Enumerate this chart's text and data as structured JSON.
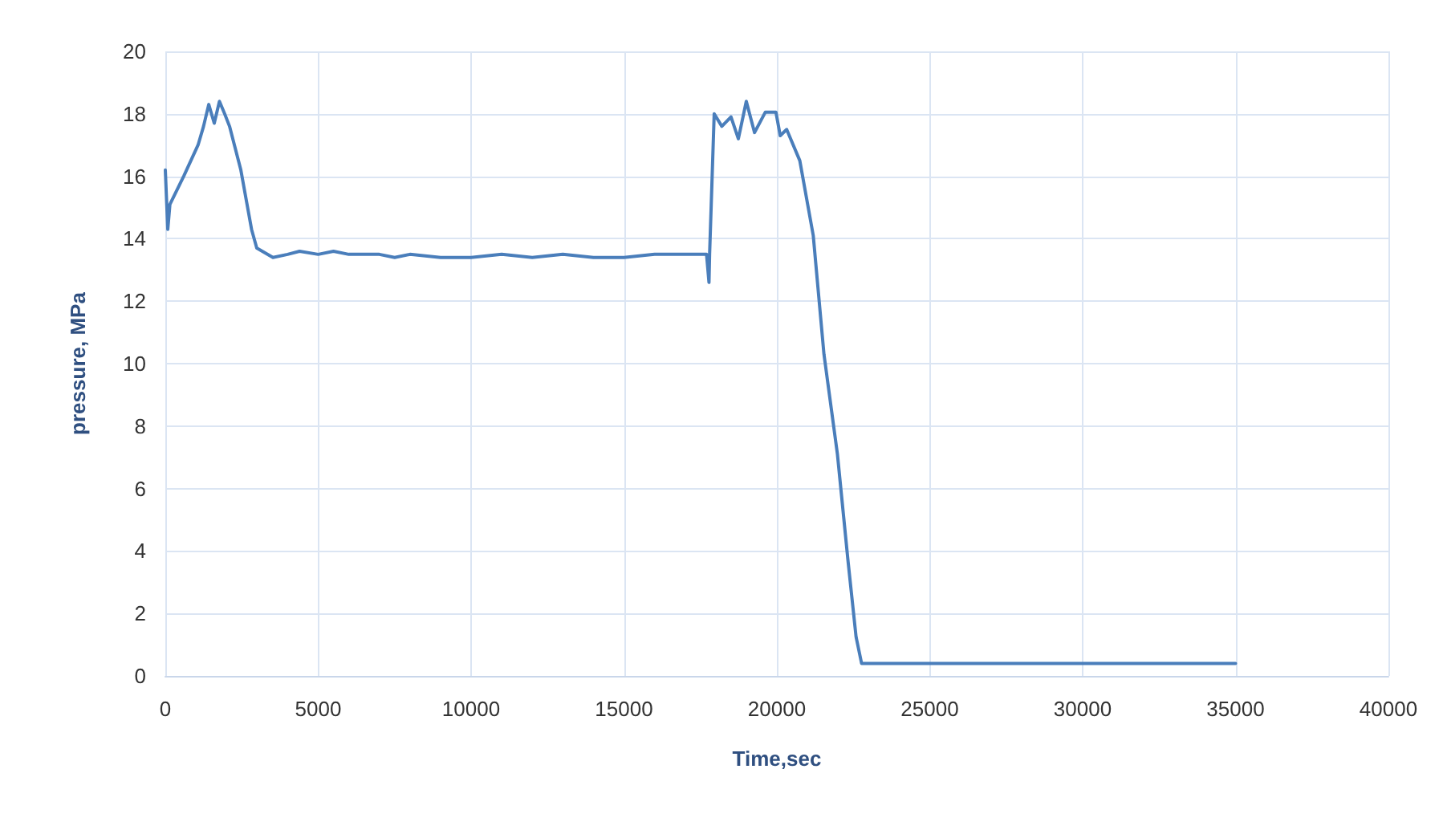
{
  "chart_data": {
    "type": "line",
    "xlabel": "Time,sec",
    "ylabel": "pressure, MPa",
    "xlim": [
      0,
      40000
    ],
    "xticks": [
      0,
      5000,
      10000,
      15000,
      20000,
      25000,
      30000,
      35000,
      40000
    ],
    "ylim": [
      0,
      20
    ],
    "yticks": [
      0,
      2,
      4,
      6,
      8,
      10,
      12,
      14,
      16,
      18,
      20
    ],
    "grid": true,
    "marker": "none",
    "line_style": "solid",
    "series": [
      {
        "color": "#4a7ebb",
        "x": [
          0,
          80,
          150,
          600,
          1070,
          1250,
          1420,
          1600,
          1770,
          1940,
          2100,
          2470,
          2820,
          2990,
          3520,
          4000,
          4390,
          5000,
          5500,
          6000,
          7000,
          7500,
          8000,
          9000,
          10000,
          11000,
          12000,
          13000,
          14000,
          15000,
          16000,
          17000,
          17700,
          17780,
          17800,
          17950,
          18200,
          18500,
          18740,
          19000,
          19270,
          19620,
          19970,
          20110,
          20320,
          20750,
          21190,
          21540,
          21980,
          22330,
          22590,
          22770,
          25000,
          30000,
          35000
        ],
        "values": [
          16.2,
          14.3,
          15.1,
          16.0,
          17.0,
          17.6,
          18.3,
          17.7,
          18.4,
          18.0,
          17.6,
          16.2,
          14.3,
          13.7,
          13.4,
          13.5,
          13.6,
          13.5,
          13.6,
          13.5,
          13.5,
          13.4,
          13.5,
          13.4,
          13.4,
          13.5,
          13.4,
          13.5,
          13.4,
          13.4,
          13.5,
          13.5,
          13.5,
          12.6,
          13.5,
          18.0,
          17.6,
          17.9,
          17.2,
          18.4,
          17.4,
          18.05,
          18.05,
          17.3,
          17.5,
          16.5,
          14.1,
          10.3,
          7.1,
          3.65,
          1.25,
          0.4,
          0.4,
          0.4,
          0.4
        ]
      }
    ]
  }
}
